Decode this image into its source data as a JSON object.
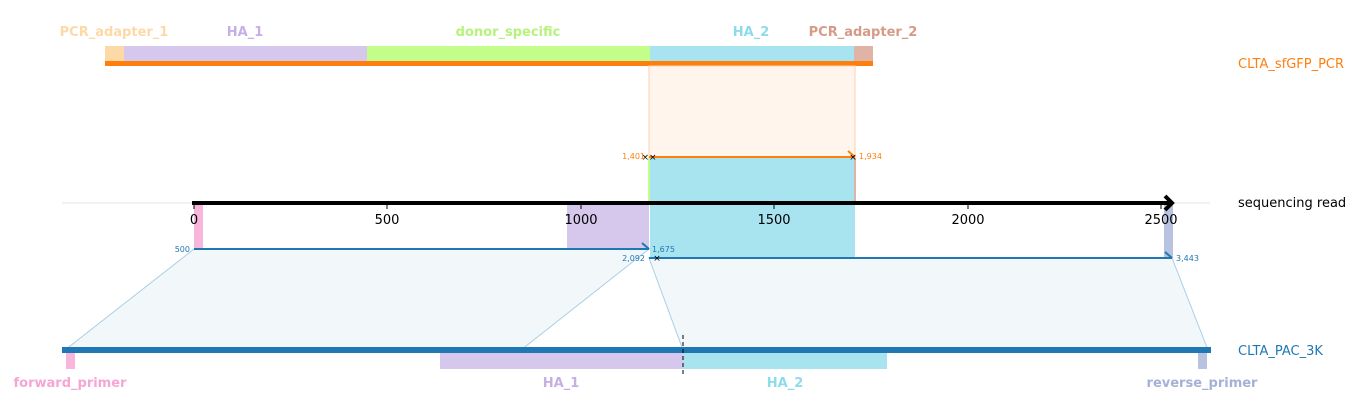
{
  "tracks": {
    "top": {
      "name": "CLTA_sfGFP_PCR",
      "color": "#ff7f0e"
    },
    "middle": {
      "name": "sequencing read",
      "color": "#000000"
    },
    "bottom": {
      "name": "CLTA_PAC_3K",
      "color": "#1f77b4"
    }
  },
  "top_features": [
    {
      "label": "PCR_adapter_1",
      "color": "#fdd9a8",
      "label_color": "#fdd9a8"
    },
    {
      "label": "HA_1",
      "color": "#d6c7ec",
      "label_color": "#c5b0e4"
    },
    {
      "label": "donor_specific",
      "color": "#c3fe8a",
      "label_color": "#b7f27c"
    },
    {
      "label": "HA_2",
      "color": "#a8e4f0",
      "label_color": "#8edbea"
    },
    {
      "label": "PCR_adapter_2",
      "color": "#dfb3a5",
      "label_color": "#d69b88"
    }
  ],
  "bottom_features": [
    {
      "label": "forward_primer",
      "color": "#f8b6dc",
      "label_color": "#f6a6d4"
    },
    {
      "label": "HA_1",
      "color": "#d6c7ec",
      "label_color": "#c5b0e4"
    },
    {
      "label": "HA_2",
      "color": "#a8e4f0",
      "label_color": "#8edbea"
    },
    {
      "label": "reverse_primer",
      "color": "#b8c4df",
      "label_color": "#a3b2d6"
    }
  ],
  "axis": {
    "ticks": [
      0,
      500,
      1000,
      1500,
      2000,
      2500
    ]
  },
  "top_alignment": {
    "read_start": "1,401",
    "read_end": "1,934"
  },
  "bottom_alignments": [
    {
      "read_start": "500",
      "read_end": "1,675"
    },
    {
      "read_start": "2,092",
      "read_end": "3,443"
    }
  ]
}
